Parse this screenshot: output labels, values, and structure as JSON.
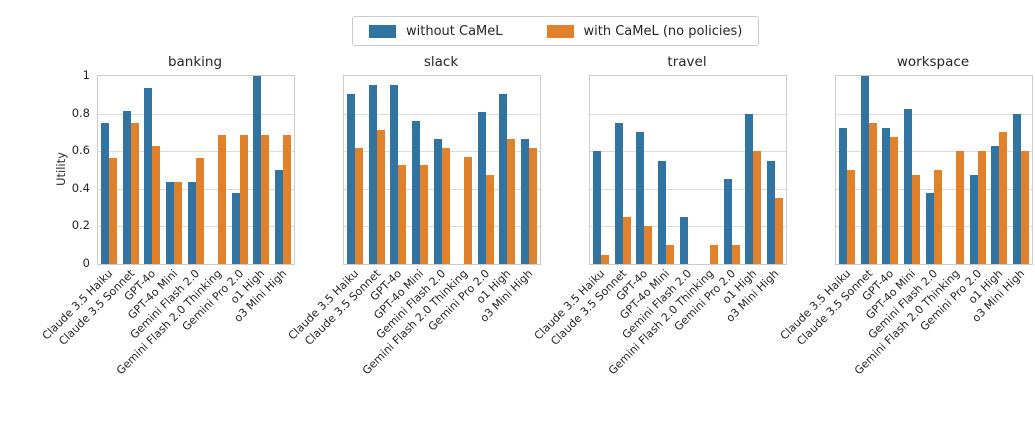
{
  "figure": {
    "ylabel": "Utility",
    "y_tick_labels": [
      "1",
      "0.8",
      "0.6",
      "0.4",
      "0.2",
      "0"
    ],
    "colors": {
      "without_camel": "#3274a1",
      "with_camel": "#e1812c",
      "gridline": "#dcdcdc",
      "spine": "#cccccc",
      "text": "#262626"
    },
    "legend": {
      "items": [
        {
          "label": "without CaMeL",
          "color": "#3274a1"
        },
        {
          "label": "with CaMeL (no policies)",
          "color": "#e1812c"
        }
      ]
    }
  },
  "chart_data": [
    {
      "type": "bar",
      "title": "banking",
      "ylabel": "Utility",
      "ylim": [
        0,
        1
      ],
      "grid": true,
      "legend_position": "top-center",
      "categories": [
        "Claude 3.5 Haiku",
        "Claude 3.5 Sonnet",
        "GPT-4o",
        "GPT-4o Mini",
        "Gemini Flash 2.0",
        "Gemini Flash 2.0 Thinking",
        "Gemini Pro 2.0",
        "o1 High",
        "o3 Mini High"
      ],
      "series": [
        {
          "name": "without CaMeL",
          "color": "#3274a1",
          "values": [
            0.75,
            0.813,
            0.938,
            0.438,
            0.438,
            null,
            0.375,
            1.0,
            0.5
          ]
        },
        {
          "name": "with CaMeL (no policies)",
          "color": "#e1812c",
          "values": [
            0.563,
            0.75,
            0.625,
            0.438,
            0.563,
            0.688,
            0.688,
            0.688,
            0.688
          ]
        }
      ]
    },
    {
      "type": "bar",
      "title": "slack",
      "ylabel": "Utility",
      "ylim": [
        0,
        1
      ],
      "grid": true,
      "categories": [
        "Claude 3.5 Haiku",
        "Claude 3.5 Sonnet",
        "GPT-4o",
        "GPT-4o Mini",
        "Gemini Flash 2.0",
        "Gemini Flash 2.0 Thinking",
        "Gemini Pro 2.0",
        "o1 High",
        "o3 Mini High"
      ],
      "series": [
        {
          "name": "without CaMeL",
          "color": "#3274a1",
          "values": [
            0.905,
            0.952,
            0.952,
            0.762,
            0.667,
            null,
            0.81,
            0.905,
            0.667
          ]
        },
        {
          "name": "with CaMeL (no policies)",
          "color": "#e1812c",
          "values": [
            0.619,
            0.714,
            0.524,
            0.524,
            0.619,
            0.571,
            0.476,
            0.667,
            0.619
          ]
        }
      ]
    },
    {
      "type": "bar",
      "title": "travel",
      "ylabel": "Utility",
      "ylim": [
        0,
        1
      ],
      "grid": true,
      "categories": [
        "Claude 3.5 Haiku",
        "Claude 3.5 Sonnet",
        "GPT-4o",
        "GPT-4o Mini",
        "Gemini Flash 2.0",
        "Gemini Flash 2.0 Thinking",
        "Gemini Pro 2.0",
        "o1 High",
        "o3 Mini High"
      ],
      "series": [
        {
          "name": "without CaMeL",
          "color": "#3274a1",
          "values": [
            0.6,
            0.75,
            0.7,
            0.55,
            0.25,
            null,
            0.45,
            0.8,
            0.55
          ]
        },
        {
          "name": "with CaMeL (no policies)",
          "color": "#e1812c",
          "values": [
            0.05,
            0.25,
            0.2,
            0.1,
            null,
            0.1,
            0.1,
            0.6,
            0.35
          ]
        }
      ]
    },
    {
      "type": "bar",
      "title": "workspace",
      "ylabel": "Utility",
      "ylim": [
        0,
        1
      ],
      "grid": true,
      "categories": [
        "Claude 3.5 Haiku",
        "Claude 3.5 Sonnet",
        "GPT-4o",
        "GPT-4o Mini",
        "Gemini Flash 2.0",
        "Gemini Flash 2.0 Thinking",
        "Gemini Pro 2.0",
        "o1 High",
        "o3 Mini High"
      ],
      "series": [
        {
          "name": "without CaMeL",
          "color": "#3274a1",
          "values": [
            0.725,
            1.0,
            0.725,
            0.825,
            0.375,
            null,
            0.475,
            0.625,
            0.8
          ]
        },
        {
          "name": "with CaMeL (no policies)",
          "color": "#e1812c",
          "values": [
            0.5,
            0.75,
            0.675,
            0.475,
            0.5,
            0.6,
            0.6,
            0.7,
            0.6
          ]
        }
      ]
    }
  ]
}
